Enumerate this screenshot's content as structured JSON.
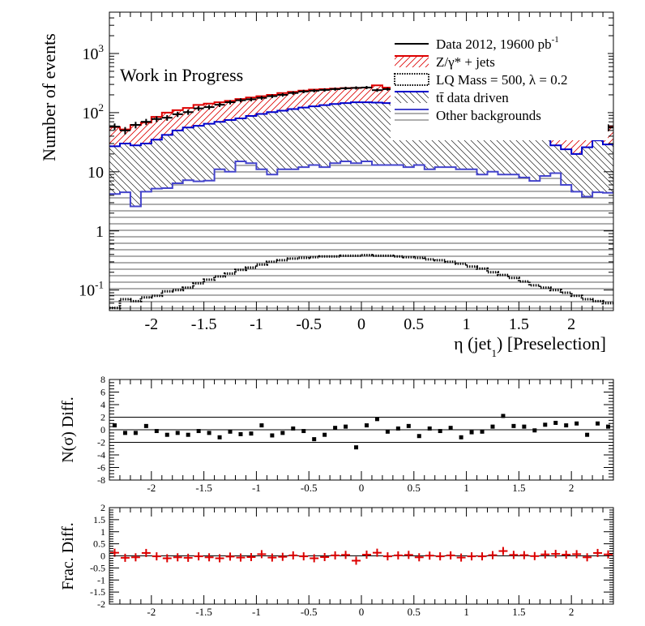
{
  "chart_data": [
    {
      "type": "step-histogram",
      "panel": "main",
      "xlabel": "η (jet",
      "xlabel_sub": "1",
      "xlabel_suffix": ")  [Preselection]",
      "ylabel": "Number of events",
      "annotation": "Work in Progress",
      "log_y": true,
      "xlim": [
        -2.4,
        2.4
      ],
      "ylim": [
        0.045,
        5000
      ],
      "x_ticks": [
        "-2",
        "-1.5",
        "-1",
        "-0.5",
        "0",
        "0.5",
        "1",
        "1.5",
        "2"
      ],
      "y_ticks": [
        {
          "label": "10",
          "sup": "-1",
          "value": 0.1
        },
        {
          "label": "1",
          "sup": "",
          "value": 1
        },
        {
          "label": "10",
          "sup": "",
          "value": 10
        },
        {
          "label": "10",
          "sup": "2",
          "value": 100
        },
        {
          "label": "10",
          "sup": "3",
          "value": 1000
        }
      ],
      "bin_edges": [
        -2.4,
        -2.3,
        -2.2,
        -2.1,
        -2.0,
        -1.9,
        -1.8,
        -1.7,
        -1.6,
        -1.5,
        -1.4,
        -1.3,
        -1.2,
        -1.1,
        -1.0,
        -0.9,
        -0.8,
        -0.7,
        -0.6,
        -0.5,
        -0.4,
        -0.3,
        -0.2,
        -0.1,
        0.0,
        0.1,
        0.2,
        0.3,
        0.4,
        0.5,
        0.6,
        0.7,
        0.8,
        0.9,
        1.0,
        1.1,
        1.2,
        1.3,
        1.4,
        1.5,
        1.6,
        1.7,
        1.8,
        1.9,
        2.0,
        2.1,
        2.2,
        2.3,
        2.4
      ],
      "legend": [
        {
          "label": "Data 2012, 19600 pb",
          "sup": "-1",
          "style": "data"
        },
        {
          "label": "Z/γ* + jets",
          "sup": "",
          "style": "zjets"
        },
        {
          "label": "LQ Mass = 500, λ = 0.2",
          "sup": "",
          "style": "signal"
        },
        {
          "label": "tt̄ data driven",
          "sup": "",
          "style": "ttbar"
        },
        {
          "label": "Other backgrounds",
          "sup": "",
          "style": "other"
        }
      ],
      "legend_placement": "top-right",
      "series": [
        {
          "name": "Other backgrounds",
          "color": "#4444cc",
          "values": [
            4.2,
            4.5,
            2.6,
            4.6,
            5.2,
            5.3,
            6.4,
            7.2,
            6.9,
            7.1,
            11,
            10,
            15,
            14,
            11,
            9,
            11,
            11,
            12,
            13,
            12,
            14,
            15,
            14,
            15,
            13,
            13,
            13,
            12,
            13,
            11,
            12,
            12,
            11,
            11,
            9,
            10,
            9,
            9,
            8,
            7,
            8.5,
            9.5,
            6,
            4.6,
            3.8,
            4.5,
            4.4
          ]
        },
        {
          "name": "tt̄ data driven",
          "color": "#0000cc",
          "values": [
            27,
            30,
            28,
            30,
            35,
            42,
            50,
            56,
            60,
            65,
            70,
            75,
            80,
            88,
            95,
            102,
            108,
            115,
            122,
            128,
            134,
            140,
            145,
            150,
            150,
            148,
            145,
            140,
            135,
            128,
            122,
            115,
            108,
            100,
            95,
            88,
            80,
            72,
            64,
            56,
            48,
            36,
            28,
            24,
            20,
            26,
            34,
            29
          ]
        },
        {
          "name": "Z/γ* + jets",
          "color": "#dd0000",
          "values": [
            57,
            52,
            62,
            68,
            85,
            100,
            110,
            120,
            135,
            142,
            150,
            158,
            170,
            180,
            190,
            200,
            215,
            225,
            235,
            245,
            250,
            255,
            260,
            262,
            265,
            290,
            265,
            255,
            250,
            245,
            235,
            225,
            215,
            200,
            190,
            180,
            170,
            158,
            148,
            135,
            120,
            110,
            100,
            90,
            80,
            70,
            60,
            58
          ]
        },
        {
          "name": "LQ Mass = 500, λ = 0.2",
          "color": "#000000",
          "values": [
            0.05,
            0.07,
            0.065,
            0.075,
            0.08,
            0.095,
            0.1,
            0.11,
            0.13,
            0.15,
            0.17,
            0.19,
            0.22,
            0.24,
            0.27,
            0.3,
            0.32,
            0.34,
            0.35,
            0.36,
            0.37,
            0.37,
            0.38,
            0.38,
            0.39,
            0.38,
            0.38,
            0.37,
            0.36,
            0.35,
            0.33,
            0.32,
            0.3,
            0.28,
            0.25,
            0.23,
            0.2,
            0.18,
            0.16,
            0.14,
            0.12,
            0.11,
            0.1,
            0.09,
            0.08,
            0.07,
            0.065,
            0.06
          ]
        },
        {
          "name": "Data 2012, 19600 pb-1",
          "color": "#000000",
          "values": [
            58,
            50,
            62,
            70,
            78,
            82,
            94,
            102,
            118,
            124,
            136,
            150,
            162,
            168,
            178,
            190,
            200,
            215,
            228,
            235,
            242,
            250,
            258,
            262,
            266,
            240,
            250,
            255,
            252,
            246,
            240,
            230,
            210,
            205,
            198,
            188,
            172,
            164,
            150,
            140,
            128,
            112,
            98,
            92,
            82,
            70,
            58,
            56
          ]
        }
      ]
    },
    {
      "type": "scatter",
      "panel": "sigma",
      "ylabel": "N(σ) Diff.",
      "xlim": [
        -2.4,
        2.4
      ],
      "ylim": [
        -8,
        8
      ],
      "x_ticks": [
        "-2",
        "-1.5",
        "-1",
        "-0.5",
        "0",
        "0.5",
        "1",
        "1.5",
        "2"
      ],
      "y_ticks": [
        "8",
        "6",
        "4",
        "2",
        "0",
        "-2",
        "-4",
        "-6",
        "-8"
      ],
      "reference_lines": [
        2,
        0,
        -2
      ],
      "values": [
        0.7,
        -0.5,
        -0.5,
        0.6,
        -0.2,
        -0.8,
        -0.5,
        -0.8,
        -0.2,
        -0.5,
        -1.2,
        -0.3,
        -0.7,
        -0.6,
        0.7,
        -0.9,
        -0.5,
        0.2,
        -0.2,
        -1.5,
        -0.8,
        0.3,
        0.5,
        -2.8,
        0.7,
        1.7,
        -0.3,
        0.2,
        0.6,
        -1.0,
        0.2,
        -0.2,
        0.3,
        -1.2,
        -0.4,
        -0.3,
        0.5,
        2.2,
        0.6,
        0.5,
        -0.1,
        0.8,
        1.1,
        0.7,
        1.0,
        -0.8,
        1.0,
        0.5
      ]
    },
    {
      "type": "errorbar",
      "panel": "frac",
      "ylabel": "Frac. Diff.",
      "xlim": [
        -2.4,
        2.4
      ],
      "ylim": [
        -2,
        2
      ],
      "x_ticks": [
        "-2",
        "-1.5",
        "-1",
        "-0.5",
        "0",
        "0.5",
        "1",
        "1.5",
        "2"
      ],
      "y_ticks": [
        "2",
        "1.5",
        "1",
        "0.5",
        "0",
        "-0.5",
        "-1",
        "-1.5",
        "-2"
      ],
      "reference_lines": [
        0
      ],
      "color": "#dd0000",
      "values": [
        0.13,
        -0.08,
        -0.06,
        0.12,
        -0.02,
        -0.1,
        -0.06,
        -0.08,
        -0.02,
        -0.06,
        -0.1,
        -0.03,
        -0.07,
        -0.05,
        0.07,
        -0.07,
        -0.04,
        0.02,
        -0.02,
        -0.1,
        -0.05,
        0.02,
        0.04,
        -0.2,
        0.05,
        0.13,
        -0.02,
        0.02,
        0.04,
        -0.06,
        0.01,
        -0.02,
        0.02,
        -0.07,
        -0.02,
        -0.02,
        0.03,
        0.2,
        0.04,
        0.03,
        -0.01,
        0.06,
        0.08,
        0.05,
        0.07,
        -0.06,
        0.12,
        0.06
      ]
    }
  ]
}
